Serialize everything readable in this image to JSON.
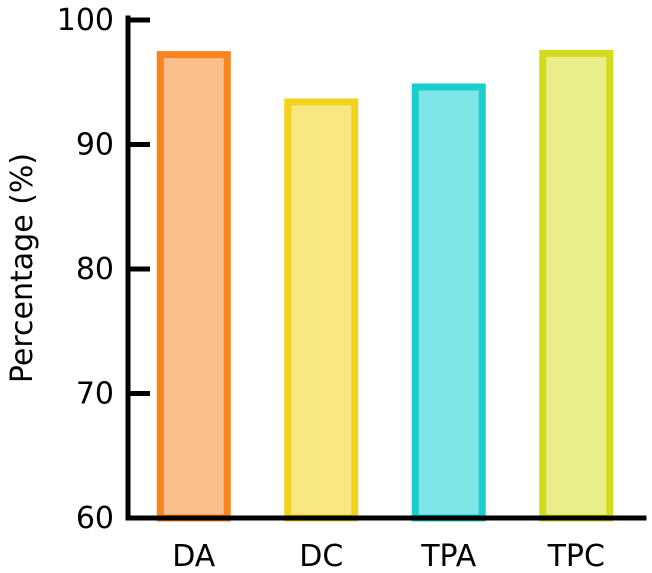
{
  "chart_data": {
    "type": "bar",
    "title": "",
    "xlabel": "",
    "ylabel": "Percentage (%)",
    "categories": [
      "DA",
      "DC",
      "TPA",
      "TPC"
    ],
    "values": [
      97.5,
      93.7,
      94.9,
      97.6
    ],
    "ylim": [
      60,
      100
    ],
    "yticks": [
      60,
      70,
      80,
      90,
      100
    ],
    "ytick_labels": [
      "60",
      "70",
      "80",
      "90",
      "100"
    ],
    "grid": false,
    "bar_colors": [
      {
        "fill": "#FBBF8E",
        "stroke": "#F7841E"
      },
      {
        "fill": "#F8E783",
        "stroke": "#F2D21A"
      },
      {
        "fill": "#7EE6E6",
        "stroke": "#1BCECE"
      },
      {
        "fill": "#E9EE88",
        "stroke": "#D3DB1E"
      }
    ]
  }
}
